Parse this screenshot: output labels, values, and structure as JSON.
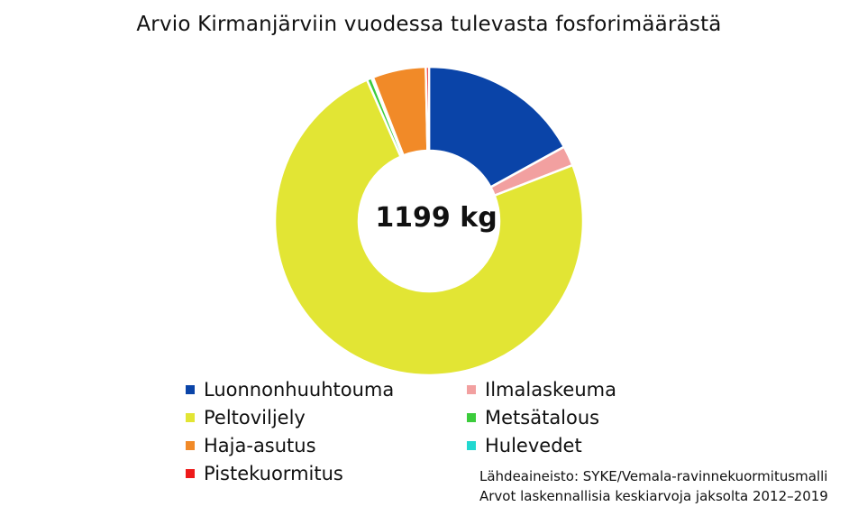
{
  "chart_data": {
    "type": "pie",
    "donut": true,
    "title": "Arvio Kirmanjärviin vuodessa tulevasta fosforimäärästä",
    "center_label": "1199 kg",
    "unit": "kg",
    "slices": [
      {
        "name": "Luonnonhuuhtouma",
        "value": 204,
        "color": "#0a44a8"
      },
      {
        "name": "Ilmalaskeuma",
        "value": 25,
        "color": "#f2a0a0"
      },
      {
        "name": "Peltoviljely",
        "value": 891,
        "color": "#e2e534"
      },
      {
        "name": "Metsätalous",
        "value": 6,
        "color": "#3ccc3c"
      },
      {
        "name": "Hulevedet",
        "value": 2,
        "color": "#22d8d0"
      },
      {
        "name": "Haja-asutus",
        "value": 67,
        "color": "#f18a28"
      },
      {
        "name": "Pistekuormitus",
        "value": 4,
        "color": "#ee1a1a"
      }
    ],
    "legend": {
      "placement": "bottom",
      "order": [
        "Luonnonhuuhtouma",
        "Ilmalaskeuma",
        "Peltoviljely",
        "Metsätalous",
        "Haja-asutus",
        "Hulevedet",
        "Pistekuormitus"
      ]
    }
  },
  "source": {
    "line1": "Lähdeaineisto: SYKE/Vemala-ravinnekuormitusmalli",
    "line2": "Arvot laskennallisia keskiarvoja jaksolta 2012–2019"
  }
}
